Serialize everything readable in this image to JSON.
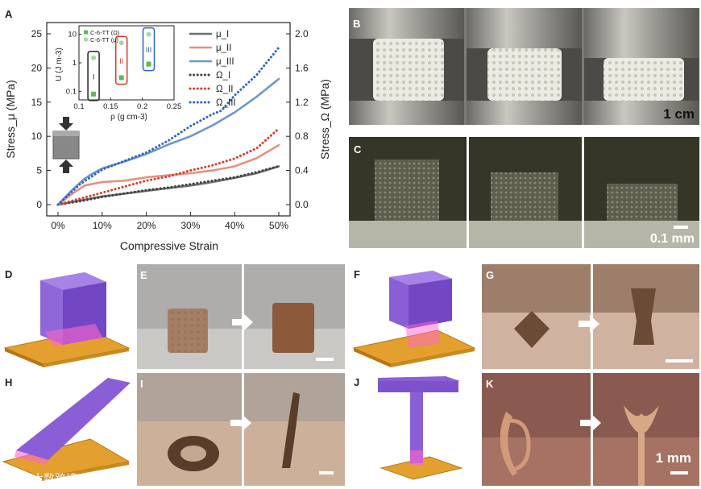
{
  "panel_labels": {
    "a": "A",
    "b": "B",
    "c": "C",
    "d": "D",
    "e": "E",
    "f": "F",
    "g": "G",
    "h": "H",
    "i": "I",
    "j": "J",
    "k": "K"
  },
  "scale_labels": {
    "b": "1 cm",
    "c": "0.1 mm",
    "k": "1 mm"
  },
  "watermark": "大数跨境",
  "colors": {
    "mu_I": "#6e6e6e",
    "mu_II": "#e8907c",
    "mu_III": "#6f96c8",
    "omega_I": "#404040",
    "omega_II": "#d93a2a",
    "omega_III": "#2d62c8",
    "inset_sq": "#5cb85c",
    "inset_circ": "#a6d89a"
  },
  "chart_data": [
    {
      "type": "line",
      "xlabel": "Compressive Strain",
      "ylabel": "Stress_μ (MPa)",
      "y2label": "Stress_Ω (MPa)",
      "xlim": [
        0,
        50
      ],
      "ylim": [
        0,
        25
      ],
      "y2lim": [
        0,
        2.0
      ],
      "xticks": [
        "0%",
        "10%",
        "20%",
        "30%",
        "40%",
        "50%"
      ],
      "yticks": [
        "0",
        "5",
        "10",
        "15",
        "20",
        "25"
      ],
      "y2ticks": [
        "0.0",
        "0.4",
        "0.8",
        "1.2",
        "1.6",
        "2.0"
      ],
      "legend_position": "top-right",
      "series": [
        {
          "name": "μ_I",
          "axis": "left",
          "style": "solid",
          "x": [
            0,
            5,
            10,
            15,
            20,
            25,
            30,
            35,
            40,
            45,
            50
          ],
          "y": [
            0,
            0.6,
            1.2,
            1.6,
            2.0,
            2.4,
            2.8,
            3.3,
            3.9,
            4.6,
            5.6
          ]
        },
        {
          "name": "μ_II",
          "axis": "left",
          "style": "solid",
          "x": [
            0,
            3,
            6,
            10,
            15,
            20,
            25,
            30,
            35,
            40,
            45,
            50
          ],
          "y": [
            0,
            1.5,
            2.8,
            3.3,
            3.5,
            4.0,
            4.3,
            4.6,
            5.0,
            5.6,
            6.8,
            8.7
          ]
        },
        {
          "name": "μ_III",
          "axis": "left",
          "style": "solid",
          "x": [
            0,
            3,
            6,
            8,
            10,
            15,
            20,
            25,
            30,
            35,
            40,
            45,
            50
          ],
          "y": [
            0,
            2.0,
            3.8,
            4.6,
            5.3,
            6.3,
            7.4,
            8.8,
            10.0,
            11.6,
            13.5,
            15.8,
            18.4
          ]
        },
        {
          "name": "Ω_I",
          "axis": "right",
          "style": "dotted",
          "x": [
            0,
            5,
            10,
            15,
            20,
            25,
            30,
            35,
            40,
            45,
            50
          ],
          "y": [
            0,
            0.04,
            0.09,
            0.13,
            0.17,
            0.2,
            0.24,
            0.28,
            0.32,
            0.38,
            0.45
          ]
        },
        {
          "name": "Ω_II",
          "axis": "right",
          "style": "dotted",
          "x": [
            0,
            5,
            10,
            15,
            20,
            25,
            30,
            35,
            40,
            45,
            50
          ],
          "y": [
            0,
            0.07,
            0.14,
            0.21,
            0.28,
            0.33,
            0.4,
            0.46,
            0.54,
            0.66,
            0.89
          ]
        },
        {
          "name": "Ω_III",
          "axis": "right",
          "style": "dotted",
          "x": [
            0,
            5,
            10,
            15,
            20,
            25,
            30,
            35,
            37,
            40,
            45,
            50
          ],
          "y": [
            0,
            0.24,
            0.41,
            0.51,
            0.61,
            0.75,
            0.92,
            1.06,
            1.1,
            1.28,
            1.52,
            1.84
          ]
        }
      ]
    },
    {
      "type": "scatter",
      "xlabel": "ρ (g cm-3)",
      "ylabel": "U (J m-3)",
      "xlim": [
        0.1,
        0.25
      ],
      "ylim_log": [
        0.05,
        20
      ],
      "xticks": [
        "0.1",
        "0.15",
        "0.2",
        "0.25"
      ],
      "yticks": [
        "10",
        "1",
        "0.1"
      ],
      "legend": [
        "C-6-TT (Ω)",
        "C-6-TT (μ)"
      ],
      "group_labels": [
        "I",
        "II",
        "III"
      ],
      "series": [
        {
          "name": "C-6-TT (Ω)",
          "marker": "square",
          "x": [
            0.123,
            0.167,
            0.21
          ],
          "y": [
            0.08,
            0.3,
            0.9
          ]
        },
        {
          "name": "C-6-TT (μ)",
          "marker": "circle",
          "x": [
            0.123,
            0.167,
            0.21
          ],
          "y": [
            1.5,
            5,
            10
          ]
        }
      ]
    }
  ]
}
